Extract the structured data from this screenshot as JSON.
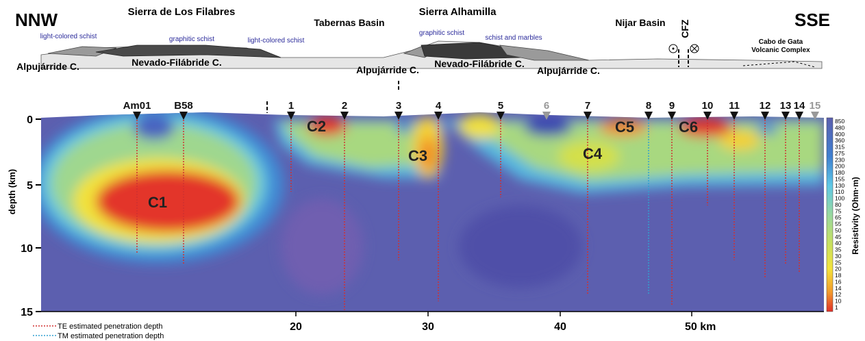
{
  "header": {
    "left": "NNW",
    "right": "SSE"
  },
  "geology": {
    "regions": [
      "Sierra de Los Filabres",
      "Tabernas Basin",
      "Sierra Alhamilla",
      "Nijar Basin",
      "CFZ"
    ],
    "lithologies": [
      "light-colored schist",
      "graphitic schist",
      "light-colored schist",
      "graphitic schist",
      "schist and marbles",
      "Cabo de Gata",
      "Volcanic Complex"
    ],
    "units": [
      "Alpujárride C.",
      "Nevado-Filábride C.",
      "Alpujárride C.",
      "Nevado-Filábride C.",
      "Alpujárride C."
    ]
  },
  "section": {
    "stations": [
      "Am01",
      "B58",
      "1",
      "2",
      "3",
      "4",
      "5",
      "6",
      "7",
      "8",
      "9",
      "10",
      "11",
      "12",
      "13",
      "14",
      "15"
    ],
    "conductors": [
      "C1",
      "C2",
      "C3",
      "C4",
      "C5",
      "C6"
    ],
    "y_axis": {
      "label": "depth (km)",
      "ticks": [
        "0",
        "5",
        "10",
        "15"
      ]
    },
    "x_axis": {
      "ticks": [
        "20",
        "30",
        "40",
        "50 km"
      ]
    }
  },
  "colorbar": {
    "title": "Resistivity (Ohm·m)",
    "labels": [
      "850",
      "480",
      "400",
      "360",
      "315",
      "275",
      "230",
      "200",
      "180",
      "155",
      "130",
      "110",
      "100",
      "80",
      "75",
      "65",
      "55",
      "50",
      "45",
      "40",
      "35",
      "30",
      "25",
      "20",
      "18",
      "16",
      "14",
      "12",
      "10",
      "1"
    ]
  },
  "legend": [
    "TE estimated penetration depth",
    "TM estimated penetration depth"
  ]
}
